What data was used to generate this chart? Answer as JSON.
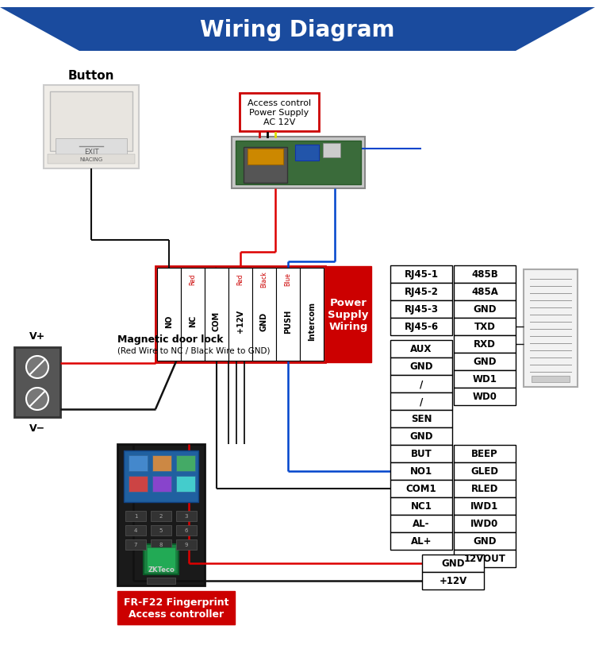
{
  "title": "Wiring Diagram",
  "title_bg_color": "#1a4b9e",
  "title_text_color": "#ffffff",
  "title_fontsize": 20,
  "bg_color": "#ffffff",
  "terminal_cols": [
    "NO",
    "NC",
    "COM",
    "+12V",
    "GND",
    "PUSH",
    "Intercom"
  ],
  "terminal_subcols": [
    "",
    "Red",
    "",
    "Red",
    "Black",
    "Blue",
    ""
  ],
  "rj45_labels": [
    "RJ45-1",
    "RJ45-2",
    "RJ45-3",
    "RJ45-6"
  ],
  "mid_labels": [
    "AUX",
    "GND",
    "/",
    "/",
    "SEN",
    "GND",
    "BUT",
    "NO1",
    "COM1",
    "NC1",
    "AL-",
    "AL+"
  ],
  "bot_labels": [
    "GND",
    "+12V"
  ],
  "rs485_labels": [
    "485B",
    "485A",
    "GND",
    "TXD",
    "RXD",
    "GND",
    "WD1",
    "WD0"
  ],
  "beep_labels": [
    "BEEP",
    "GLED",
    "RLED",
    "IWD1",
    "IWD0",
    "GND",
    "12VOUT"
  ],
  "power_supply_label": "Power\nSupply\nWiring",
  "power_supply_bg": "#cc0000",
  "fingerprint_label": "FR-F22 Fingerprint\nAccess controller",
  "fingerprint_bg": "#cc0000",
  "button_label": "Button",
  "power_ac_label": "Access control\nPower Supply\nAC 12V",
  "magnetic_label": "Magnetic door lock",
  "magnetic_sublabel": "(Red Wire to NC / Black Wire to GND)",
  "wire_red": "#dd0000",
  "wire_blue": "#0044cc",
  "wire_black": "#111111",
  "box_border": "#000000"
}
